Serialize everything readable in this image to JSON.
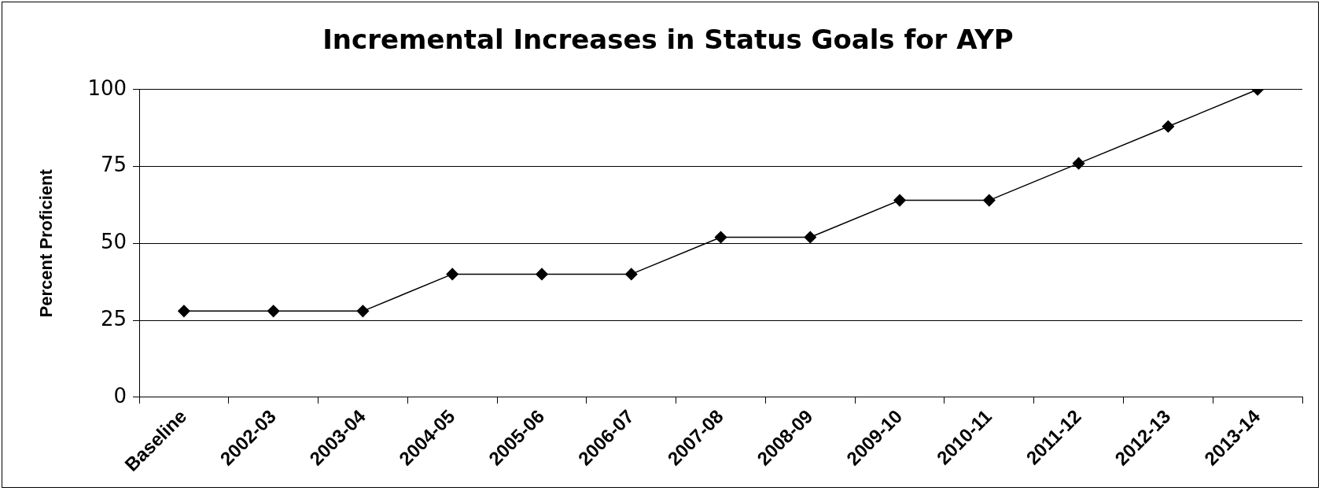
{
  "chart_data": {
    "type": "line",
    "title": "Incremental Increases in Status Goals for AYP",
    "ylabel": "Percent Proficient",
    "categories": [
      "Baseline",
      "2002-03",
      "2003-04",
      "2004-05",
      "2005-06",
      "2006-07",
      "2007-08",
      "2008-09",
      "2009-10",
      "2010-11",
      "2011-12",
      "2012-13",
      "2013-14"
    ],
    "series": [
      {
        "color": "#000000",
        "values": [
          28,
          28,
          28,
          40,
          40,
          40,
          52,
          52,
          64,
          64,
          76,
          88,
          100
        ]
      }
    ],
    "ylim": [
      0,
      100
    ],
    "yticks": [
      0,
      25,
      50,
      75,
      100
    ],
    "grid": "y",
    "legend": false,
    "marker": "diamond",
    "line_style": "solid"
  }
}
